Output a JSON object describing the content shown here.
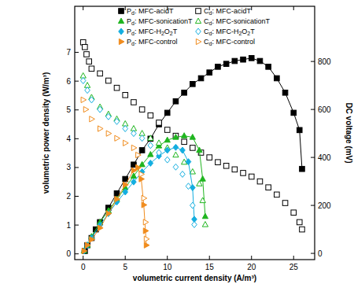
{
  "chart_data": {
    "type": "line",
    "x_label": "volumetric current density (A/m³)",
    "y_label": "volumetric power density (W/m³)",
    "y2_label": "DC voltage (mV)",
    "xlim": [
      -1,
      27.5
    ],
    "xticks": [
      0,
      5,
      10,
      15,
      20,
      25
    ],
    "ylim": [
      -0.2,
      8.6
    ],
    "yticks": [
      0,
      1,
      2,
      3,
      4,
      5,
      6,
      7
    ],
    "y2lim": [
      -26,
      1030
    ],
    "y2ticks": [
      0,
      200,
      400,
      600,
      800
    ],
    "legend": "top-left",
    "grid": false,
    "series": [
      {
        "name": "Pd: MFC-acidT",
        "color": "#000000",
        "marker": "square",
        "line_style": "solid",
        "x": [
          0.2,
          0.5,
          1,
          1.5,
          2,
          3,
          4,
          5,
          6,
          7,
          8,
          9,
          10,
          11,
          12,
          13,
          14,
          15,
          16,
          17,
          18,
          19,
          20,
          21,
          22,
          23,
          24,
          25,
          25.7,
          26
        ],
        "values": [
          0.1,
          0.3,
          0.55,
          0.85,
          1.1,
          1.6,
          2.1,
          2.6,
          3.1,
          3.6,
          4.0,
          4.5,
          4.9,
          5.3,
          5.6,
          5.9,
          6.1,
          6.3,
          6.5,
          6.6,
          6.7,
          6.75,
          6.8,
          6.7,
          6.5,
          6.1,
          5.6,
          4.9,
          4.3,
          2.95
        ]
      },
      {
        "name": "Cd: MFC-acidT",
        "color": "#000000",
        "marker": "square-open",
        "line_style": "none",
        "axis": "y2",
        "x": [
          0,
          0.2,
          0.4,
          0.7,
          1,
          2,
          3,
          4,
          5,
          6,
          7,
          8,
          9,
          10,
          11,
          12,
          13,
          14,
          15,
          16,
          17,
          18,
          19,
          20,
          21,
          22,
          23,
          24,
          25,
          25.7,
          26
        ],
        "values": [
          880,
          860,
          830,
          800,
          770,
          750,
          720,
          690,
          660,
          630,
          600,
          575,
          545,
          515,
          490,
          465,
          440,
          420,
          400,
          380,
          365,
          350,
          335,
          320,
          300,
          275,
          245,
          210,
          170,
          130,
          100
        ]
      },
      {
        "name": "Pd: MFC-sonicationT",
        "color": "#1fb51f",
        "marker": "triangle",
        "line_style": "solid",
        "x": [
          0.1,
          0.5,
          1,
          2,
          3,
          4,
          5,
          6,
          7,
          8,
          9,
          10,
          11,
          12,
          13,
          13.8,
          14.2,
          14.5
        ],
        "values": [
          0.1,
          0.3,
          0.6,
          1.1,
          1.5,
          1.9,
          2.3,
          2.7,
          3.1,
          3.45,
          3.75,
          3.95,
          4.05,
          4.1,
          4.05,
          3.6,
          2.6,
          1.3
        ]
      },
      {
        "name": "Cd: MFC-sonicationT",
        "color": "#1fb51f",
        "marker": "triangle-open",
        "line_style": "none",
        "axis": "y2",
        "x": [
          0,
          0.5,
          1,
          2,
          3,
          4,
          5,
          6,
          7,
          8,
          9,
          10,
          11,
          12,
          13,
          13.8,
          14.2,
          14.5
        ],
        "values": [
          740,
          700,
          650,
          610,
          580,
          560,
          540,
          520,
          500,
          480,
          460,
          440,
          410,
          380,
          340,
          290,
          220,
          120
        ]
      },
      {
        "name": "Pd: MFC-H2O2T",
        "color": "#13aee0",
        "marker": "diamond",
        "line_style": "solid",
        "x": [
          0.1,
          0.5,
          1,
          2,
          3,
          4,
          5,
          6,
          7,
          8,
          9,
          10,
          11,
          11.8,
          12.5,
          13,
          13.2
        ],
        "values": [
          0.1,
          0.3,
          0.55,
          1.0,
          1.4,
          1.8,
          2.15,
          2.5,
          2.85,
          3.15,
          3.4,
          3.6,
          3.7,
          3.6,
          3.2,
          2.3,
          1.2
        ]
      },
      {
        "name": "Cd: MFC-H2O2T",
        "color": "#13aee0",
        "marker": "diamond-open",
        "line_style": "none",
        "axis": "y2",
        "x": [
          0,
          0.5,
          1,
          2,
          3,
          4,
          5,
          6,
          7,
          8,
          9,
          10,
          11,
          11.8,
          12.5,
          13,
          13.2
        ],
        "values": [
          720,
          680,
          640,
          600,
          570,
          550,
          520,
          500,
          480,
          450,
          420,
          390,
          360,
          330,
          280,
          200,
          120
        ]
      },
      {
        "name": "Pd: MFC-control",
        "color": "#f08c1e",
        "marker": "triangle-right",
        "line_style": "solid",
        "x": [
          0.1,
          0.5,
          1,
          2,
          3,
          4,
          5,
          6,
          6.5,
          6.9,
          7.2,
          7.4,
          7.5
        ],
        "values": [
          0.1,
          0.3,
          0.5,
          0.9,
          1.4,
          1.9,
          2.4,
          2.9,
          3.0,
          2.6,
          1.7,
          0.8,
          0.3
        ]
      },
      {
        "name": "Cd: MFC-control",
        "color": "#f08c1e",
        "marker": "triangle-right-open",
        "line_style": "none",
        "axis": "y2",
        "x": [
          0,
          0.3,
          1,
          2,
          3,
          4,
          5,
          6,
          6.5,
          6.9,
          7.2,
          7.4,
          7.5
        ],
        "values": [
          640,
          600,
          560,
          520,
          500,
          480,
          460,
          440,
          410,
          330,
          230,
          130,
          60
        ]
      }
    ]
  }
}
